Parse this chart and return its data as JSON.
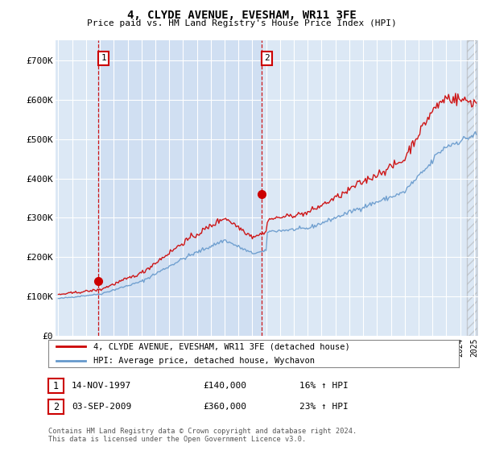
{
  "title": "4, CLYDE AVENUE, EVESHAM, WR11 3FE",
  "subtitle": "Price paid vs. HM Land Registry's House Price Index (HPI)",
  "legend_line1": "4, CLYDE AVENUE, EVESHAM, WR11 3FE (detached house)",
  "legend_line2": "HPI: Average price, detached house, Wychavon",
  "annotation1_date": "14-NOV-1997",
  "annotation1_price": "£140,000",
  "annotation1_hpi": "16% ↑ HPI",
  "annotation2_date": "03-SEP-2009",
  "annotation2_price": "£360,000",
  "annotation2_hpi": "23% ↑ HPI",
  "footer": "Contains HM Land Registry data © Crown copyright and database right 2024.\nThis data is licensed under the Open Government Licence v3.0.",
  "red_line_color": "#cc0000",
  "blue_line_color": "#6699cc",
  "figure_bg": "#ffffff",
  "plot_bg_color": "#dce8f5",
  "plot_bg_shade": "#c8daf0",
  "ylim": [
    0,
    750000
  ],
  "yticks": [
    0,
    100000,
    200000,
    300000,
    400000,
    500000,
    600000,
    700000
  ],
  "ytick_labels": [
    "£0",
    "£100K",
    "£200K",
    "£300K",
    "£400K",
    "£500K",
    "£600K",
    "£700K"
  ],
  "sale1_x": 1997.87,
  "sale1_y": 140000,
  "sale2_x": 2009.67,
  "sale2_y": 360000,
  "xmin": 1995.0,
  "xmax": 2025.1
}
